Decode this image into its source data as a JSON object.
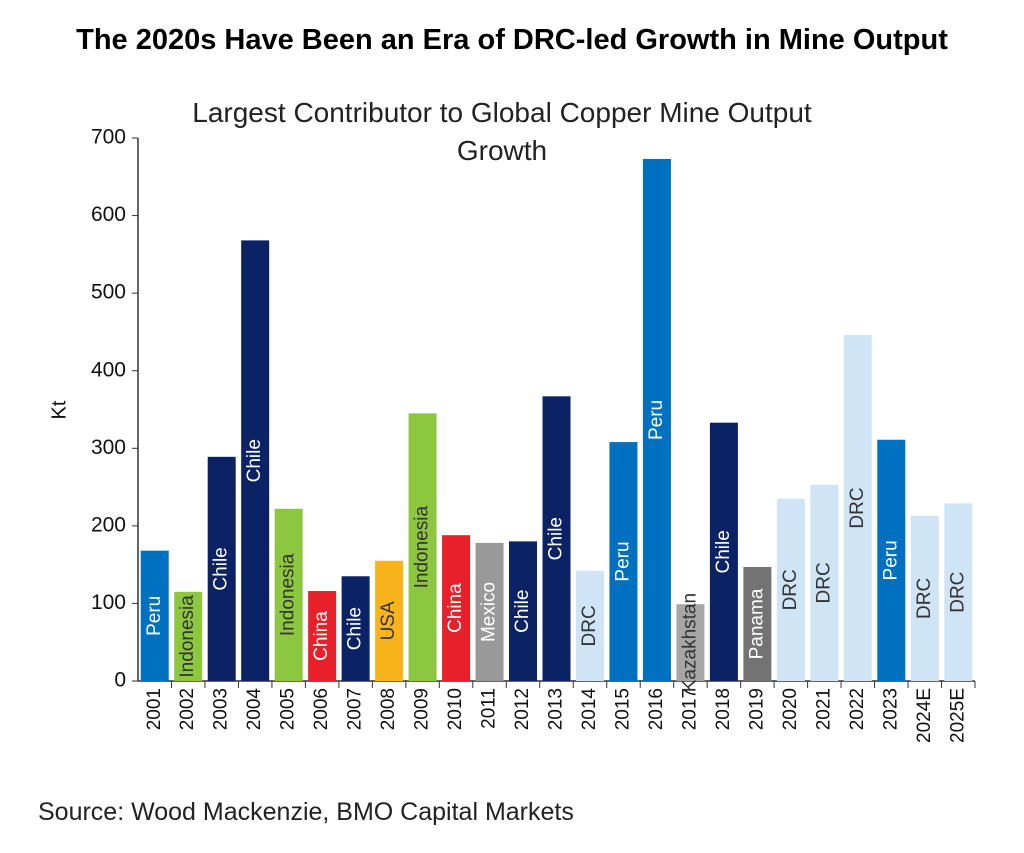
{
  "chart_data": {
    "type": "bar",
    "title": "The 2020s Have Been an Era of DRC-led Growth in Mine Output",
    "subtitle": "Largest Contributor to Global Copper Mine Output Growth",
    "y_label": "Kt",
    "source": "Source: Wood Mackenzie, BMO Capital Markets",
    "categories": [
      "2001",
      "2002",
      "2003",
      "2004",
      "2005",
      "2006",
      "2007",
      "2008",
      "2009",
      "2010",
      "2011",
      "2012",
      "2013",
      "2014",
      "2015",
      "2016",
      "2017",
      "2018",
      "2019",
      "2020",
      "2021",
      "2022",
      "2023",
      "2024E",
      "2025E"
    ],
    "values": [
      168,
      115,
      289,
      568,
      222,
      116,
      135,
      155,
      345,
      188,
      178,
      180,
      367,
      142,
      308,
      673,
      99,
      333,
      147,
      235,
      253,
      446,
      311,
      213,
      229
    ],
    "bar_labels": [
      "Peru",
      "Indonesia",
      "Chile",
      "Chile",
      "Indonesia",
      "China",
      "Chile",
      "USA",
      "Indonesia",
      "China",
      "Mexico",
      "Chile",
      "Chile",
      "DRC",
      "Peru",
      "Peru",
      "Kazakhstan",
      "Chile",
      "Panama",
      "DRC",
      "DRC",
      "DRC",
      "Peru",
      "DRC",
      "DRC"
    ],
    "colors": [
      "#0070c0",
      "#8dc63f",
      "#0b2265",
      "#0b2265",
      "#8dc63f",
      "#e8202a",
      "#0b2265",
      "#f8b41a",
      "#8dc63f",
      "#e8202a",
      "#999999",
      "#0b2265",
      "#0b2265",
      "#cfe4f5",
      "#0070c0",
      "#0070c0",
      "#a6a6a6",
      "#0b2265",
      "#737373",
      "#cfe4f5",
      "#cfe4f5",
      "#cfe4f5",
      "#0070c0",
      "#cfe4f5",
      "#cfe4f5"
    ],
    "ylim": [
      0,
      700
    ],
    "yticks": [
      0,
      100,
      200,
      300,
      400,
      500,
      600,
      700
    ],
    "grid": false
  }
}
